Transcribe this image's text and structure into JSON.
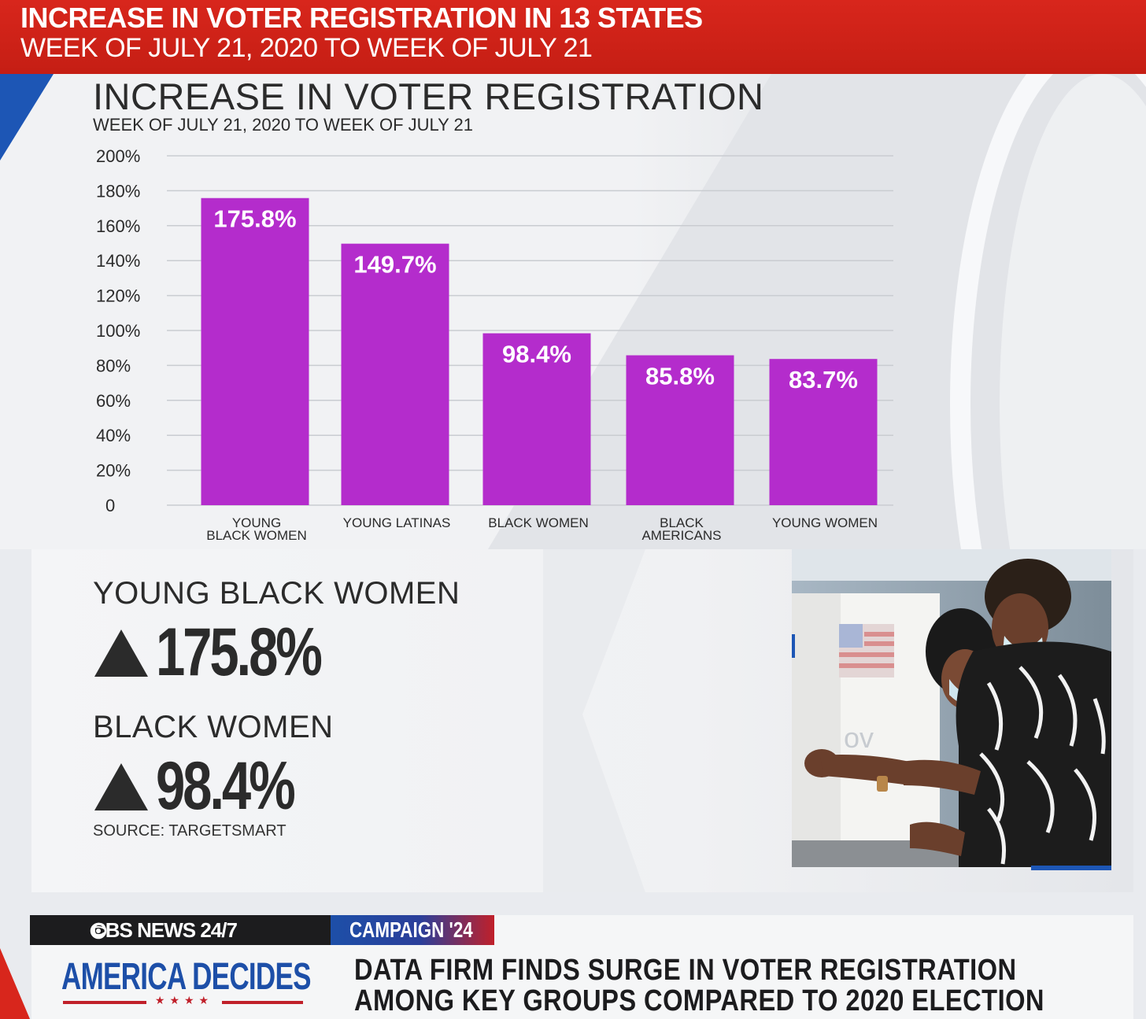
{
  "banner": {
    "line1": "INCREASE IN VOTER REGISTRATION IN 13 STATES",
    "line2": "WEEK OF JULY 21, 2020 TO WEEK OF JULY 21"
  },
  "chart_data": {
    "type": "bar",
    "title": "INCREASE IN VOTER REGISTRATION",
    "subtitle": "WEEK OF JULY 21, 2020 TO WEEK OF JULY 21",
    "categories": [
      [
        "YOUNG",
        "BLACK WOMEN"
      ],
      [
        "YOUNG LATINAS"
      ],
      [
        "BLACK WOMEN"
      ],
      [
        "BLACK",
        "AMERICANS"
      ],
      [
        "YOUNG WOMEN"
      ]
    ],
    "values": [
      175.8,
      149.7,
      98.4,
      85.8,
      83.7
    ],
    "data_labels": [
      "175.8%",
      "149.7%",
      "98.4%",
      "85.8%",
      "83.7%"
    ],
    "yticks": [
      0,
      20,
      40,
      60,
      80,
      100,
      120,
      140,
      160,
      180,
      200
    ],
    "ytick_labels": [
      "0",
      "20%",
      "40%",
      "60%",
      "80%",
      "100%",
      "120%",
      "140%",
      "160%",
      "180%",
      "200%"
    ],
    "ylim": [
      0,
      200
    ],
    "grid": true,
    "bar_color": "#b42ccc"
  },
  "stats": [
    {
      "label": "YOUNG BLACK WOMEN",
      "value": "175.8%",
      "icon": "up-triangle-icon"
    },
    {
      "label": "BLACK WOMEN",
      "value": "98.4%",
      "icon": "up-triangle-icon"
    }
  ],
  "source": "SOURCE: TARGETSMART",
  "ticker": {
    "network": "CBS NEWS 24/7",
    "section": "CAMPAIGN '24",
    "brand": "AMERICA DECIDES",
    "headline_line1": "DATA FIRM FINDS SURGE IN VOTER REGISTRATION",
    "headline_line2": "AMONG KEY GROUPS COMPARED TO 2020 ELECTION"
  },
  "colors": {
    "banner_red": "#d8261c",
    "accent_blue": "#1d56b5",
    "bar_purple": "#b42ccc"
  }
}
